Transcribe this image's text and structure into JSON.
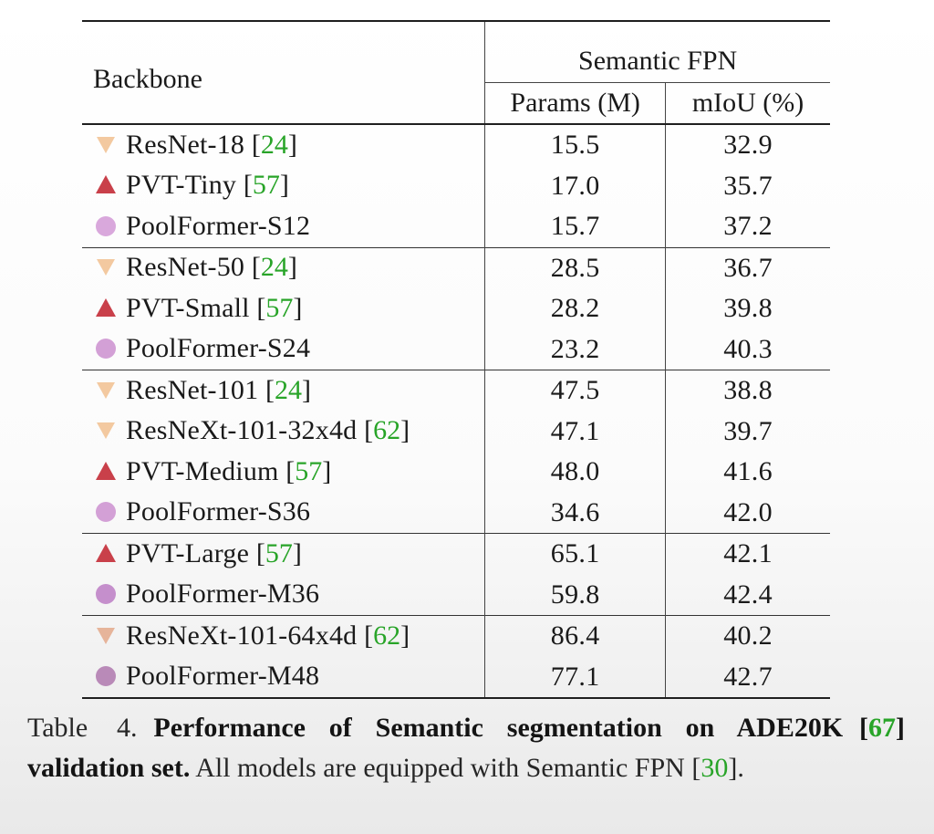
{
  "table": {
    "header": {
      "backbone": "Backbone",
      "group": "Semantic FPN",
      "params": "Params (M)",
      "miou": "mIoU (%)"
    },
    "groups": [
      {
        "rows": [
          {
            "marker": "triangle-down-icon",
            "color": "#f3c9a0",
            "name": "ResNet-18 ",
            "ref": "24",
            "params": "15.5",
            "miou": "32.9"
          },
          {
            "marker": "triangle-up-icon",
            "color": "#c9404a",
            "name": "PVT-Tiny ",
            "ref": "57",
            "params": "17.0",
            "miou": "35.7"
          },
          {
            "marker": "circle-icon",
            "color": "#d9a8dc",
            "name": "PoolFormer-S12",
            "ref": "",
            "params": "15.7",
            "miou": "37.2"
          }
        ]
      },
      {
        "rows": [
          {
            "marker": "triangle-down-icon",
            "color": "#f3c9a0",
            "name": "ResNet-50 ",
            "ref": "24",
            "params": "28.5",
            "miou": "36.7"
          },
          {
            "marker": "triangle-up-icon",
            "color": "#c9404a",
            "name": "PVT-Small ",
            "ref": "57",
            "params": "28.2",
            "miou": "39.8"
          },
          {
            "marker": "circle-icon",
            "color": "#d3a0d6",
            "name": "PoolFormer-S24",
            "ref": "",
            "params": "23.2",
            "miou": "40.3"
          }
        ]
      },
      {
        "rows": [
          {
            "marker": "triangle-down-icon",
            "color": "#f3c9a0",
            "name": "ResNet-101 ",
            "ref": "24",
            "params": "47.5",
            "miou": "38.8"
          },
          {
            "marker": "triangle-down-icon",
            "color": "#f3c9a0",
            "name": "ResNeXt-101-32x4d ",
            "ref": "62",
            "params": "47.1",
            "miou": "39.7"
          },
          {
            "marker": "triangle-up-icon",
            "color": "#c9404a",
            "name": "PVT-Medium ",
            "ref": "57",
            "params": "48.0",
            "miou": "41.6"
          },
          {
            "marker": "circle-icon",
            "color": "#d3a0d6",
            "name": "PoolFormer-S36",
            "ref": "",
            "params": "34.6",
            "miou": "42.0"
          }
        ]
      },
      {
        "rows": [
          {
            "marker": "triangle-up-icon",
            "color": "#c9404a",
            "name": "PVT-Large ",
            "ref": "57",
            "params": "65.1",
            "miou": "42.1"
          },
          {
            "marker": "circle-icon",
            "color": "#c58fcc",
            "name": "PoolFormer-M36",
            "ref": "",
            "params": "59.8",
            "miou": "42.4"
          }
        ]
      },
      {
        "rows": [
          {
            "marker": "triangle-down-icon",
            "color": "#e6b49a",
            "name": "ResNeXt-101-64x4d ",
            "ref": "62",
            "params": "86.4",
            "miou": "40.2"
          },
          {
            "marker": "circle-icon",
            "color": "#b98ab8",
            "name": "PoolFormer-M48",
            "ref": "",
            "params": "77.1",
            "miou": "42.7"
          }
        ]
      }
    ]
  },
  "caption": {
    "label": "Table 4.",
    "bold_1": "Performance of Semantic segmentation on ADE20K",
    "ref_1": "67",
    "bold_2": "validation set.",
    "text_1": "All models are equipped with Semantic FPN",
    "ref_2": "30",
    "text_2": "."
  },
  "colors": {
    "citation": "#28a428",
    "resnet_marker": "#f3c9a0",
    "pvt_marker": "#c9404a",
    "poolformer_marker": "#d3a0d6"
  }
}
